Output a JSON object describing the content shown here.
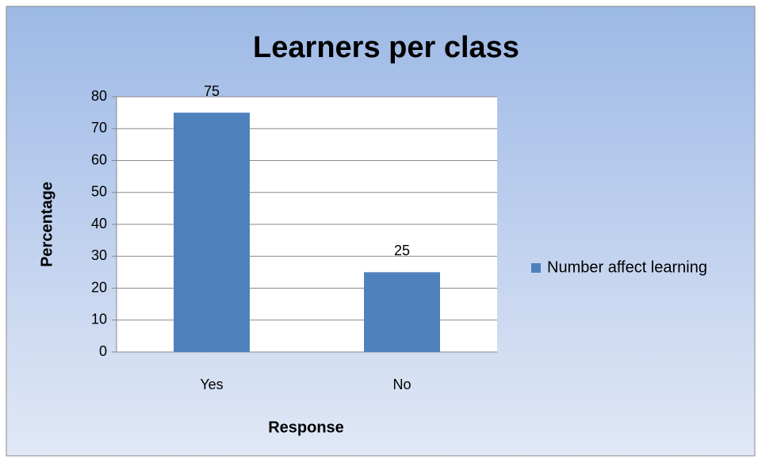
{
  "chart_data": {
    "type": "bar",
    "title": "Learners per class",
    "categories": [
      "Yes",
      "No"
    ],
    "series": [
      {
        "name": "Number affect learning",
        "color": "#4f81bd",
        "values": [
          75,
          25
        ]
      }
    ],
    "ylim": [
      0,
      80
    ],
    "yticks": [
      0,
      10,
      20,
      30,
      40,
      50,
      60,
      70,
      80
    ],
    "xlabel": "Response",
    "ylabel": "Percentage",
    "grid": true,
    "legend": "right"
  }
}
